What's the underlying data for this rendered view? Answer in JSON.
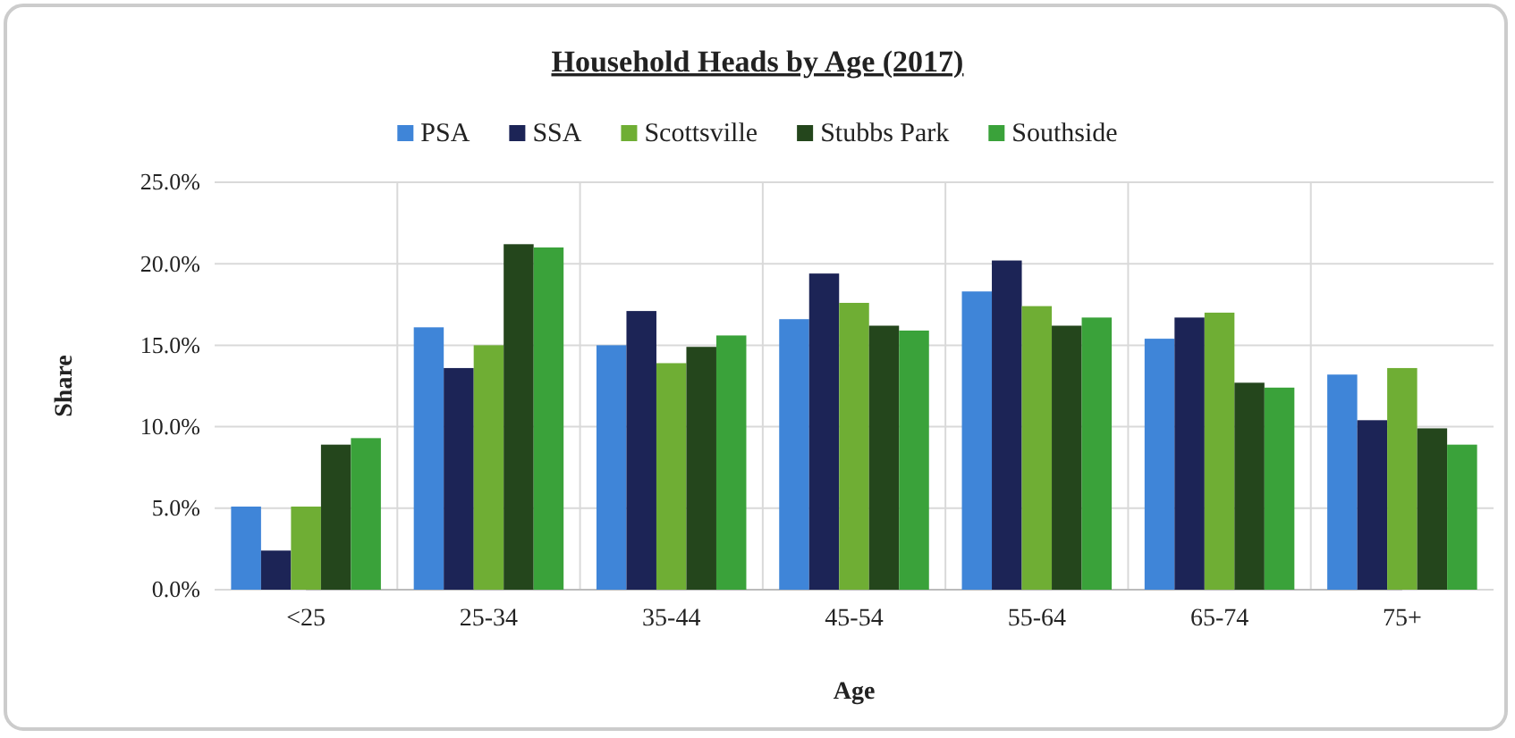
{
  "chart_data": {
    "type": "bar",
    "title": "Household Heads by Age (2017)",
    "xlabel": "Age",
    "ylabel": "Share",
    "categories": [
      "<25",
      "25-34",
      "35-44",
      "45-54",
      "55-64",
      "65-74",
      "75+"
    ],
    "series": [
      {
        "name": "PSA",
        "color": "#3f85d8",
        "values": [
          5.1,
          16.1,
          15.0,
          16.6,
          18.3,
          15.4,
          13.2
        ]
      },
      {
        "name": "SSA",
        "color": "#1c2456",
        "values": [
          2.4,
          13.6,
          17.1,
          19.4,
          20.2,
          16.7,
          10.4
        ]
      },
      {
        "name": "Scottsville",
        "color": "#6fae34",
        "values": [
          5.1,
          15.0,
          13.9,
          17.6,
          17.4,
          17.0,
          13.6
        ]
      },
      {
        "name": "Stubbs Park",
        "color": "#24461c",
        "values": [
          8.9,
          21.2,
          14.9,
          16.2,
          16.2,
          12.7,
          9.9
        ]
      },
      {
        "name": "Southside",
        "color": "#3aa23a",
        "values": [
          9.3,
          21.0,
          15.6,
          15.9,
          16.7,
          12.4,
          8.9
        ]
      }
    ],
    "ylim": [
      0,
      25
    ],
    "yticks": [
      {
        "value": 0,
        "label": "0.0%"
      },
      {
        "value": 5,
        "label": "5.0%"
      },
      {
        "value": 10,
        "label": "10.0%"
      },
      {
        "value": 15,
        "label": "15.0%"
      },
      {
        "value": 20,
        "label": "20.0%"
      },
      {
        "value": 25,
        "label": "25.0%"
      }
    ],
    "grid": true,
    "legend": "top"
  }
}
